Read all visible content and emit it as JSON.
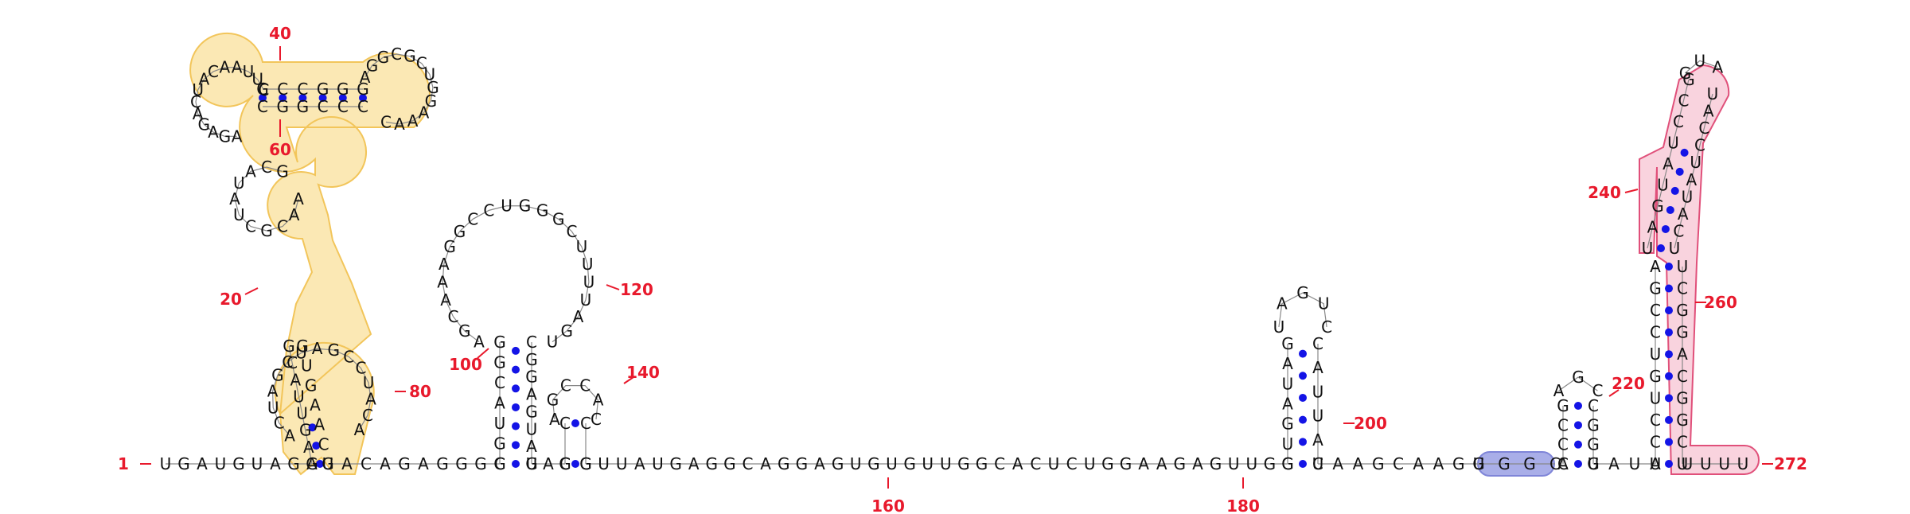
{
  "diagram": {
    "type": "rna-secondary-structure",
    "length": 272,
    "colors": {
      "nucleotide_text": "#111111",
      "base_pair_dot": "#1414e6",
      "position_label": "#e8192c",
      "highlight_yellow_fill": "#fbe8b4",
      "highlight_yellow_stroke": "#f2c55a",
      "highlight_pink_fill": "#f9d3de",
      "highlight_pink_stroke": "#e0507a",
      "highlight_blue_fill": "#a9aee8",
      "highlight_blue_stroke": "#7f85d8"
    },
    "position_labels": [
      "1",
      "20",
      "40",
      "60",
      "80",
      "100",
      "120",
      "140",
      "160",
      "180",
      "200",
      "220",
      "240",
      "260",
      "272"
    ],
    "backbone_5p": "UGAUGUAGA",
    "backbone_mid": "GUUAUGAGGCAGGAGUGUGUUGGCACUCUGGAAGAGUUGG",
    "backbone_tail": "UAUA",
    "hairpin_99_126": {
      "stem_5p": "GGUACGG",
      "loop": "AGCAAAGGCCUGGGCUUUUAGU",
      "stem_3p": "UAUGAGGC"
    },
    "hairpin_136_140": {
      "stem_5p": "GC",
      "loop": "AGCCAC"
    },
    "hairpin_190_205": {
      "stem_5p": "GUGAUAG",
      "loop": "UAGUC",
      "stem_3p": "UAUUAC"
    },
    "hairpin_216_223": {
      "stem_5p": "CCCG",
      "loop": "AGC"
    },
    "yellow_region": {
      "stem_a": "GAGUUACG",
      "stem_b": "GCAAGUG",
      "loop_left": "ACUAGCUAGCCUACA",
      "helix_top": "GCCGGG",
      "helix_top_pair": "CGGCCC",
      "loop_top_left": "AGAGACUACAAUUC",
      "loop_top_right": "AGGCGCUGGAAAC",
      "loop_bottom": "AACGCUAUACG"
    },
    "blue_region": "UGGC",
    "pink_region": {
      "stem_left": "UCCUGUCCGA",
      "stem_right": "UCGGCAGGCU",
      "hairpin_left": "UAGUAUCCG",
      "hairpin_right": "UCAUAUCCAU",
      "loop": "GUA",
      "tail": "UUUU"
    }
  }
}
